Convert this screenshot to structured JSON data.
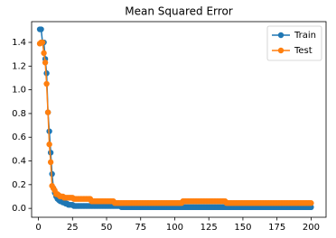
{
  "chart_data": {
    "type": "line",
    "title": "Mean Squared Error",
    "x": [
      1,
      2,
      3,
      4,
      5,
      6,
      7,
      8,
      9,
      10,
      11,
      12,
      13,
      14,
      15,
      16,
      17,
      18,
      19,
      20,
      21,
      22,
      23,
      24,
      25,
      26,
      27,
      28,
      29,
      30,
      31,
      32,
      33,
      34,
      35,
      36,
      37,
      38,
      39,
      40,
      41,
      42,
      43,
      44,
      45,
      46,
      47,
      48,
      49,
      50,
      51,
      52,
      53,
      54,
      55,
      56,
      57,
      58,
      59,
      60,
      61,
      62,
      63,
      64,
      65,
      66,
      67,
      68,
      69,
      70,
      71,
      72,
      73,
      74,
      75,
      76,
      77,
      78,
      79,
      80,
      81,
      82,
      83,
      84,
      85,
      86,
      87,
      88,
      89,
      90,
      91,
      92,
      93,
      94,
      95,
      96,
      97,
      98,
      99,
      100,
      101,
      102,
      103,
      104,
      105,
      106,
      107,
      108,
      109,
      110,
      111,
      112,
      113,
      114,
      115,
      116,
      117,
      118,
      119,
      120,
      121,
      122,
      123,
      124,
      125,
      126,
      127,
      128,
      129,
      130,
      131,
      132,
      133,
      134,
      135,
      136,
      137,
      138,
      139,
      140,
      141,
      142,
      143,
      144,
      145,
      146,
      147,
      148,
      149,
      150,
      151,
      152,
      153,
      154,
      155,
      156,
      157,
      158,
      159,
      160,
      161,
      162,
      163,
      164,
      165,
      166,
      167,
      168,
      169,
      170,
      171,
      172,
      173,
      174,
      175,
      176,
      177,
      178,
      179,
      180,
      181,
      182,
      183,
      184,
      185,
      186,
      187,
      188,
      189,
      190,
      191,
      192,
      193,
      194,
      195,
      196,
      197,
      198,
      199,
      200
    ],
    "series": [
      {
        "name": "Train",
        "color": "#1f77b4",
        "values": [
          1.51,
          1.51,
          1.4,
          1.4,
          1.26,
          1.14,
          0.81,
          0.65,
          0.47,
          0.29,
          0.17,
          0.13,
          0.1,
          0.08,
          0.07,
          0.06,
          0.06,
          0.05,
          0.05,
          0.04,
          0.04,
          0.03,
          0.03,
          0.03,
          0.03,
          0.02,
          0.02,
          0.02,
          0.02,
          0.02,
          0.02,
          0.02,
          0.02,
          0.02,
          0.02,
          0.02,
          0.02,
          0.02,
          0.02,
          0.02,
          0.02,
          0.02,
          0.02,
          0.02,
          0.02,
          0.02,
          0.02,
          0.02,
          0.02,
          0.02,
          0.02,
          0.02,
          0.02,
          0.02,
          0.02,
          0.02,
          0.02,
          0.02,
          0.02,
          0.02,
          0.01,
          0.01,
          0.01,
          0.01,
          0.01,
          0.01,
          0.01,
          0.01,
          0.01,
          0.01,
          0.01,
          0.01,
          0.01,
          0.01,
          0.01,
          0.01,
          0.01,
          0.01,
          0.01,
          0.01,
          0.01,
          0.01,
          0.01,
          0.01,
          0.01,
          0.01,
          0.01,
          0.01,
          0.01,
          0.01,
          0.01,
          0.01,
          0.01,
          0.01,
          0.01,
          0.01,
          0.01,
          0.01,
          0.01,
          0.01,
          0.01,
          0.01,
          0.01,
          0.01,
          0.01,
          0.01,
          0.01,
          0.01,
          0.01,
          0.01,
          0.01,
          0.01,
          0.01,
          0.01,
          0.01,
          0.01,
          0.01,
          0.01,
          0.01,
          0.01,
          0.01,
          0.01,
          0.01,
          0.01,
          0.01,
          0.01,
          0.01,
          0.01,
          0.01,
          0.01,
          0.01,
          0.01,
          0.01,
          0.01,
          0.01,
          0.01,
          0.01,
          0.01,
          0.01,
          0.01,
          0.01,
          0.01,
          0.01,
          0.01,
          0.01,
          0.01,
          0.01,
          0.01,
          0.01,
          0.01,
          0.01,
          0.01,
          0.01,
          0.01,
          0.01,
          0.01,
          0.01,
          0.01,
          0.01,
          0.01,
          0.01,
          0.01,
          0.01,
          0.01,
          0.01,
          0.01,
          0.01,
          0.01,
          0.01,
          0.01,
          0.01,
          0.01,
          0.01,
          0.01,
          0.01,
          0.01,
          0.01,
          0.01,
          0.01,
          0.01,
          0.01,
          0.01,
          0.01,
          0.01,
          0.01,
          0.01,
          0.01,
          0.01,
          0.01,
          0.01,
          0.01,
          0.01,
          0.01,
          0.01,
          0.01,
          0.01,
          0.01,
          0.01,
          0.01,
          0.01
        ]
      },
      {
        "name": "Test",
        "color": "#ff7f0e",
        "values": [
          1.39,
          1.4,
          1.4,
          1.31,
          1.23,
          1.05,
          0.81,
          0.54,
          0.39,
          0.19,
          0.17,
          0.15,
          0.12,
          0.12,
          0.11,
          0.1,
          0.1,
          0.1,
          0.09,
          0.09,
          0.09,
          0.09,
          0.09,
          0.09,
          0.09,
          0.08,
          0.08,
          0.08,
          0.08,
          0.08,
          0.08,
          0.08,
          0.08,
          0.08,
          0.08,
          0.08,
          0.08,
          0.08,
          0.06,
          0.06,
          0.06,
          0.06,
          0.06,
          0.06,
          0.06,
          0.06,
          0.06,
          0.06,
          0.06,
          0.06,
          0.06,
          0.06,
          0.06,
          0.06,
          0.06,
          0.045,
          0.045,
          0.045,
          0.045,
          0.045,
          0.045,
          0.045,
          0.045,
          0.045,
          0.045,
          0.045,
          0.045,
          0.045,
          0.045,
          0.045,
          0.045,
          0.045,
          0.045,
          0.045,
          0.045,
          0.045,
          0.045,
          0.045,
          0.045,
          0.045,
          0.045,
          0.045,
          0.045,
          0.045,
          0.045,
          0.045,
          0.045,
          0.045,
          0.045,
          0.045,
          0.045,
          0.045,
          0.045,
          0.045,
          0.045,
          0.045,
          0.045,
          0.045,
          0.045,
          0.045,
          0.045,
          0.045,
          0.045,
          0.045,
          0.045,
          0.06,
          0.06,
          0.06,
          0.06,
          0.06,
          0.06,
          0.06,
          0.06,
          0.06,
          0.06,
          0.06,
          0.06,
          0.06,
          0.06,
          0.06,
          0.06,
          0.06,
          0.06,
          0.06,
          0.06,
          0.06,
          0.06,
          0.06,
          0.06,
          0.06,
          0.06,
          0.06,
          0.06,
          0.06,
          0.06,
          0.06,
          0.06,
          0.045,
          0.045,
          0.045,
          0.045,
          0.045,
          0.045,
          0.045,
          0.045,
          0.045,
          0.045,
          0.045,
          0.045,
          0.045,
          0.045,
          0.045,
          0.045,
          0.045,
          0.045,
          0.045,
          0.045,
          0.045,
          0.045,
          0.045,
          0.045,
          0.045,
          0.045,
          0.045,
          0.045,
          0.045,
          0.045,
          0.045,
          0.045,
          0.045,
          0.045,
          0.045,
          0.045,
          0.045,
          0.045,
          0.045,
          0.045,
          0.045,
          0.045,
          0.045,
          0.045,
          0.045,
          0.045,
          0.045,
          0.045,
          0.045,
          0.045,
          0.045,
          0.045,
          0.045,
          0.045,
          0.045,
          0.045,
          0.045,
          0.045,
          0.045,
          0.045,
          0.045,
          0.045,
          0.045
        ]
      }
    ],
    "xlim": [
      -5,
      211
    ],
    "xticks": [
      0,
      25,
      50,
      75,
      100,
      125,
      150,
      175,
      200
    ],
    "ylim": [
      -0.075,
      1.575
    ],
    "yticks": [
      {
        "value": 0,
        "label": "0.0"
      },
      0.2,
      0.4,
      0.6,
      0.8,
      {
        "value": 1,
        "label": "1.0"
      },
      1.2,
      1.4
    ],
    "legend": "upper right",
    "grid": false,
    "marker": "circle"
  }
}
